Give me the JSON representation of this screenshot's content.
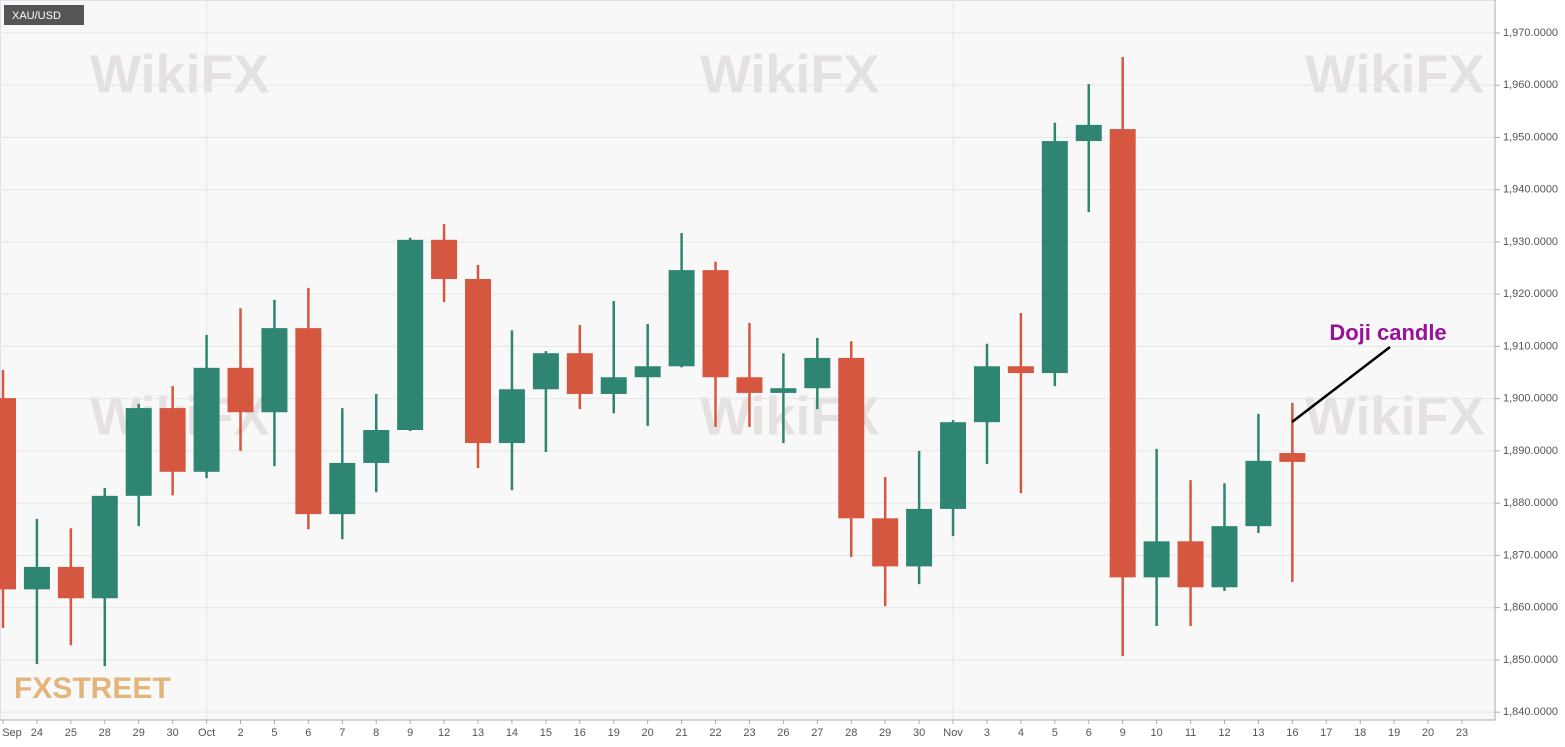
{
  "chart_data": {
    "type": "candlestick",
    "symbol": "XAU/USD",
    "annotation": "Doji candle",
    "watermark": "WikiFX",
    "logo": "FXSTREET",
    "up_color": "#2e8572",
    "down_color": "#d6573f",
    "grid": true,
    "categories": [
      "Sep",
      "24",
      "25",
      "28",
      "29",
      "30",
      "Oct",
      "2",
      "5",
      "6",
      "7",
      "8",
      "9",
      "12",
      "13",
      "14",
      "15",
      "16",
      "19",
      "20",
      "21",
      "22",
      "23",
      "26",
      "27",
      "28",
      "29",
      "30",
      "Nov",
      "3",
      "4",
      "5",
      "6",
      "9",
      "10",
      "11",
      "12",
      "13",
      "16",
      "17",
      "18",
      "19",
      "20",
      "23"
    ],
    "open": [
      1900.1,
      1863.5,
      1867.8,
      1861.8,
      1881.4,
      1898.2,
      1886.0,
      1905.9,
      1897.4,
      1913.5,
      1877.9,
      1887.7,
      1894.0,
      1930.4,
      1922.9,
      1891.5,
      1901.8,
      1908.7,
      1900.9,
      1904.1,
      1906.2,
      1924.6,
      1904.1,
      1901.1,
      1902.0,
      1907.8,
      1877.1,
      1867.9,
      1878.9,
      1895.5,
      1906.2,
      1904.9,
      1949.3,
      1951.6,
      1865.8,
      1872.7,
      1863.9,
      1875.6,
      1889.6,
      null,
      null,
      null,
      null,
      null
    ],
    "high": [
      1905.5,
      1877.0,
      1875.2,
      1882.9,
      1899.0,
      1902.4,
      1912.2,
      1917.3,
      1918.9,
      1921.2,
      1898.2,
      1900.9,
      1930.8,
      1933.4,
      1925.6,
      1913.1,
      1909.1,
      1914.1,
      1918.7,
      1914.3,
      1931.7,
      1926.2,
      1914.5,
      1908.7,
      1911.6,
      1911.0,
      1885.0,
      1890.0,
      1895.9,
      1910.5,
      1916.4,
      1952.8,
      1960.2,
      1965.4,
      1890.4,
      1884.4,
      1883.8,
      1897.1,
      1899.2,
      null,
      null,
      null,
      null,
      null
    ],
    "low": [
      1856.1,
      1849.2,
      1852.8,
      1848.8,
      1875.6,
      1881.5,
      1884.8,
      1890.0,
      1887.1,
      1875.0,
      1873.1,
      1882.1,
      1893.8,
      1918.5,
      1886.7,
      1882.5,
      1889.8,
      1898.0,
      1897.2,
      1894.8,
      1906.0,
      1894.6,
      1894.6,
      1891.5,
      1898.0,
      1869.7,
      1860.3,
      1864.5,
      1873.7,
      1887.5,
      1881.9,
      1902.4,
      1935.7,
      1850.7,
      1856.5,
      1856.5,
      1863.2,
      1874.3,
      1864.9,
      null,
      null,
      null,
      null,
      null
    ],
    "close": [
      1863.5,
      1867.8,
      1861.8,
      1881.4,
      1898.2,
      1886.0,
      1905.9,
      1897.4,
      1913.5,
      1877.9,
      1887.7,
      1894.0,
      1930.4,
      1922.9,
      1891.5,
      1901.8,
      1908.7,
      1900.9,
      1904.1,
      1906.2,
      1924.6,
      1904.1,
      1901.1,
      1902.0,
      1907.8,
      1877.1,
      1867.9,
      1878.9,
      1895.5,
      1906.2,
      1904.9,
      1949.3,
      1952.4,
      1865.8,
      1872.7,
      1863.9,
      1875.6,
      1888.1,
      1887.9,
      null,
      null,
      null,
      null,
      null
    ],
    "ylim": [
      1838.5,
      1976.3
    ],
    "yticks": [
      {
        "value": 1840,
        "label": "1,840.0000"
      },
      {
        "value": 1850,
        "label": "1,850.0000"
      },
      {
        "value": 1860,
        "label": "1,860.0000"
      },
      {
        "value": 1870,
        "label": "1,870.0000"
      },
      {
        "value": 1880,
        "label": "1,880.0000"
      },
      {
        "value": 1890,
        "label": "1,890.0000"
      },
      {
        "value": 1900,
        "label": "1,900.0000"
      },
      {
        "value": 1910,
        "label": "1,910.0000"
      },
      {
        "value": 1920,
        "label": "1,920.0000"
      },
      {
        "value": 1930,
        "label": "1,930.0000"
      },
      {
        "value": 1940,
        "label": "1,940.0000"
      },
      {
        "value": 1950,
        "label": "1,950.0000"
      },
      {
        "value": 1960,
        "label": "1,960.0000"
      },
      {
        "value": 1970,
        "label": "1,970.0000"
      }
    ]
  }
}
